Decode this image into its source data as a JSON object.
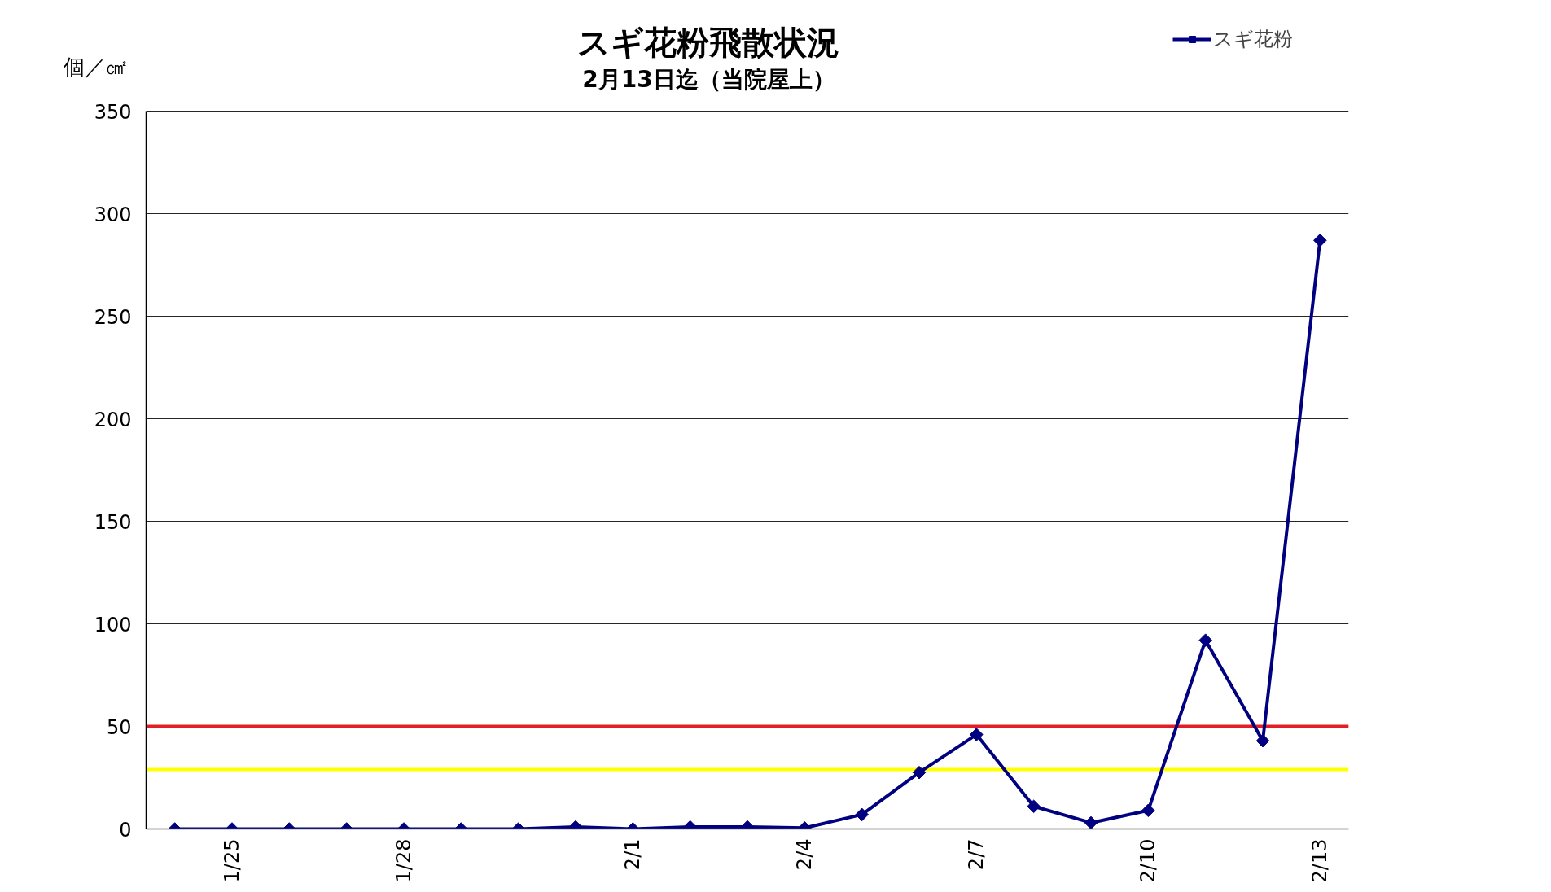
{
  "chart_data": {
    "type": "line",
    "title": "スギ花粉飛散状況",
    "subtitle": "2月13日迄（当院屋上）",
    "ylabel": "個／㎠",
    "categories": [
      null,
      "1/25",
      null,
      null,
      "1/28",
      null,
      null,
      null,
      "2/1",
      null,
      null,
      "2/4",
      null,
      null,
      "2/7",
      null,
      null,
      "2/10",
      null,
      null,
      "2/13"
    ],
    "series": [
      {
        "name": "スギ花粉",
        "color": "#000080",
        "values": [
          0,
          0,
          0,
          0,
          0,
          0,
          0,
          1,
          0,
          1,
          1,
          0.5,
          7,
          27.5,
          46,
          11,
          3,
          9,
          92,
          43,
          287
        ]
      }
    ],
    "ylim": [
      0,
      350
    ],
    "yticks": [
      0,
      50,
      100,
      150,
      200,
      250,
      300,
      350
    ],
    "grid": "y",
    "legend": "top right",
    "marker": "diamond",
    "line_style": "solid",
    "ref_lines": [
      {
        "axis": "y",
        "value": 50,
        "color": "#e31e24"
      },
      {
        "axis": "y",
        "value": 29,
        "color": "#ffff00"
      }
    ]
  }
}
